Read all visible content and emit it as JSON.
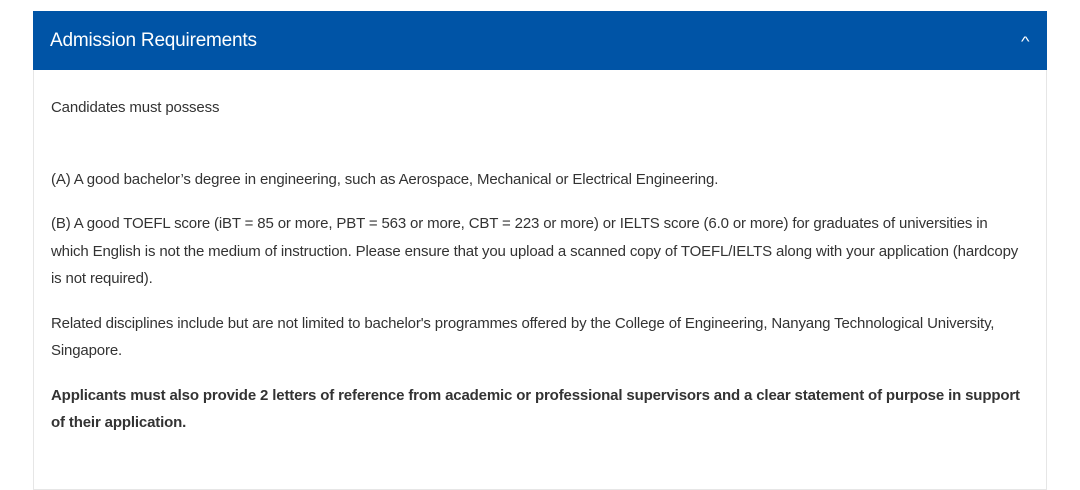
{
  "accordion": {
    "title": "Admission Requirements",
    "expanded": true,
    "toggle_icon": "chevron-up-icon",
    "toggle_glyph": "^",
    "header_color": "#0054a6",
    "paragraphs": {
      "intro": "Candidates must possess",
      "a": "(A) A good bachelor’s degree in engineering, such as Aerospace, Mechanical or Electrical Engineering.",
      "b": "(B) A good TOEFL score (iBT = 85 or more, PBT = 563 or more, CBT = 223 or more) or IELTS score (6.0 or more) for graduates of universities in which English is not the medium of instruction. Please ensure that you upload a scanned copy of TOEFL/IELTS along with your application (hardcopy is not required).",
      "related": "Related disciplines include but are not limited to bachelor's programmes offered by the College of Engineering, Nanyang Technological University, Singapore.",
      "references": "Applicants must also provide 2 letters of reference from academic or professional supervisors and a clear statement of purpose in support of their application."
    }
  }
}
